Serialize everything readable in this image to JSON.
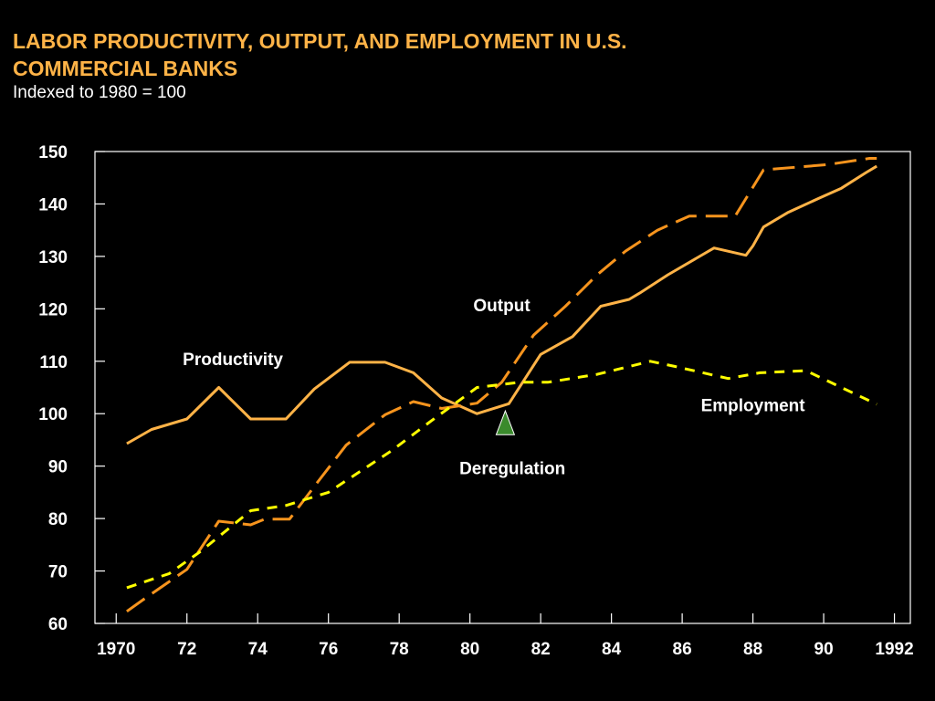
{
  "title": "LABOR PRODUCTIVITY, OUTPUT, AND EMPLOYMENT IN U.S. COMMERCIAL BANKS",
  "subtitle": "Indexed to 1980 = 100",
  "colors": {
    "background": "#000000",
    "title": "#ffb347",
    "productivity": "#ffb347",
    "output": "#f7941d",
    "employment": "#ffff00",
    "marker": "#3a8a2c"
  },
  "chart_data": {
    "type": "line",
    "title": "LABOR PRODUCTIVITY, OUTPUT, AND EMPLOYMENT IN U.S. COMMERCIAL BANKS",
    "subtitle": "Indexed to 1980 = 100",
    "xlim": [
      1970,
      1992
    ],
    "ylim": [
      60,
      150
    ],
    "x_ticks": [
      1970,
      1972,
      1974,
      1976,
      1978,
      1980,
      1982,
      1984,
      1986,
      1988,
      1990,
      1992
    ],
    "x_tick_labels": [
      "1970",
      "72",
      "74",
      "76",
      "78",
      "80",
      "82",
      "84",
      "86",
      "88",
      "90",
      "1992"
    ],
    "y_ticks": [
      60,
      70,
      80,
      90,
      100,
      110,
      120,
      130,
      140,
      150
    ],
    "y_tick_labels": [
      "60",
      "70",
      "80",
      "90",
      "100",
      "110",
      "120",
      "130",
      "140",
      "150"
    ],
    "grid": false,
    "series": [
      {
        "name": "Productivity",
        "style": "solid",
        "points": [
          [
            1970.3,
            94.3
          ],
          [
            1971,
            97
          ],
          [
            1972,
            99
          ],
          [
            1972.9,
            105
          ],
          [
            1973.8,
            99
          ],
          [
            1974.8,
            99
          ],
          [
            1975.6,
            104.7
          ],
          [
            1976.6,
            109.8
          ],
          [
            1977.6,
            109.8
          ],
          [
            1978.4,
            107.8
          ],
          [
            1979.2,
            103
          ],
          [
            1980.2,
            100
          ],
          [
            1981.1,
            101.9
          ],
          [
            1982,
            111.3
          ],
          [
            1982.9,
            114.7
          ],
          [
            1983.7,
            120.5
          ],
          [
            1984.5,
            121.8
          ],
          [
            1984.8,
            123
          ],
          [
            1985.6,
            126.5
          ],
          [
            1986.9,
            131.6
          ],
          [
            1987.8,
            130.2
          ],
          [
            1988,
            132
          ],
          [
            1988.3,
            135.6
          ],
          [
            1989,
            138.4
          ],
          [
            1989.9,
            141.2
          ],
          [
            1990.5,
            143
          ],
          [
            1991.2,
            146
          ],
          [
            1991.5,
            147.2
          ]
        ]
      },
      {
        "name": "Output",
        "style": "long-dash",
        "points": [
          [
            1970.3,
            62.3
          ],
          [
            1970.8,
            64.7
          ],
          [
            1972,
            70.3
          ],
          [
            1972.9,
            79.5
          ],
          [
            1973.8,
            78.8
          ],
          [
            1974.2,
            79.9
          ],
          [
            1974.9,
            79.9
          ],
          [
            1975.7,
            87
          ],
          [
            1976.5,
            94
          ],
          [
            1977.6,
            99.8
          ],
          [
            1978.4,
            102.3
          ],
          [
            1979.2,
            101
          ],
          [
            1980.2,
            102
          ],
          [
            1980.9,
            106
          ],
          [
            1981.8,
            115
          ],
          [
            1982.7,
            120.5
          ],
          [
            1983.6,
            126.5
          ],
          [
            1984.4,
            131
          ],
          [
            1985.3,
            135
          ],
          [
            1986.2,
            137.7
          ],
          [
            1987.5,
            137.7
          ],
          [
            1988.3,
            146.5
          ],
          [
            1990.1,
            147.5
          ],
          [
            1991.3,
            148.7
          ],
          [
            1991.5,
            148.7
          ]
        ]
      },
      {
        "name": "Employment",
        "style": "short-dash",
        "points": [
          [
            1970.3,
            66.8
          ],
          [
            1971.5,
            69.5
          ],
          [
            1972.4,
            73.8
          ],
          [
            1973.2,
            78.2
          ],
          [
            1973.8,
            81.5
          ],
          [
            1974.8,
            82.5
          ],
          [
            1976,
            85
          ],
          [
            1977.8,
            93
          ],
          [
            1978.9,
            98.6
          ],
          [
            1980.2,
            105
          ],
          [
            1981.4,
            106
          ],
          [
            1982.2,
            106
          ],
          [
            1983.6,
            107.5
          ],
          [
            1985.1,
            110
          ],
          [
            1985.8,
            109
          ],
          [
            1987.3,
            106.7
          ],
          [
            1988.2,
            107.8
          ],
          [
            1989.5,
            108.2
          ],
          [
            1991.5,
            101.8
          ]
        ]
      }
    ],
    "annotations": [
      {
        "text": "Productivity",
        "x": 1973.3,
        "y": 109.3
      },
      {
        "text": "Output",
        "x": 1980.9,
        "y": 119.5
      },
      {
        "text": "Employment",
        "x": 1988.0,
        "y": 100.5
      },
      {
        "text": "Deregulation",
        "x": 1981.2,
        "y": 88.5
      }
    ],
    "markers": [
      {
        "type": "triangle",
        "label": "Deregulation",
        "x": 1981.0,
        "y": 96.0
      }
    ]
  }
}
